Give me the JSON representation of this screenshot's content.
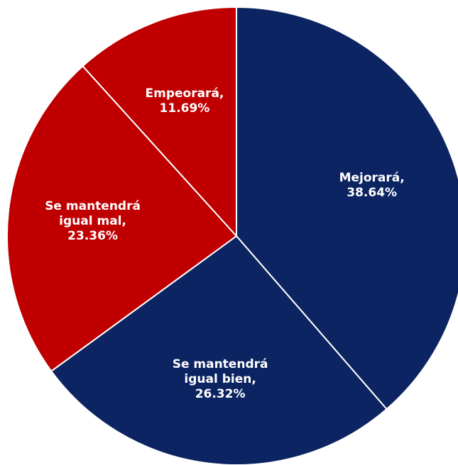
{
  "chart_data": {
    "type": "pie",
    "categories": [
      "Mejorará,",
      "Se mantendrá igual bien,",
      "Se mantendrá igual mal,",
      "Empeorará,"
    ],
    "values": [
      38.64,
      26.32,
      23.36,
      11.69
    ],
    "value_labels": [
      "38.64%",
      "26.32%",
      "23.36%",
      "11.69%"
    ],
    "colors": [
      "#0c2461",
      "#0c2461",
      "#c00000",
      "#c00000"
    ]
  }
}
